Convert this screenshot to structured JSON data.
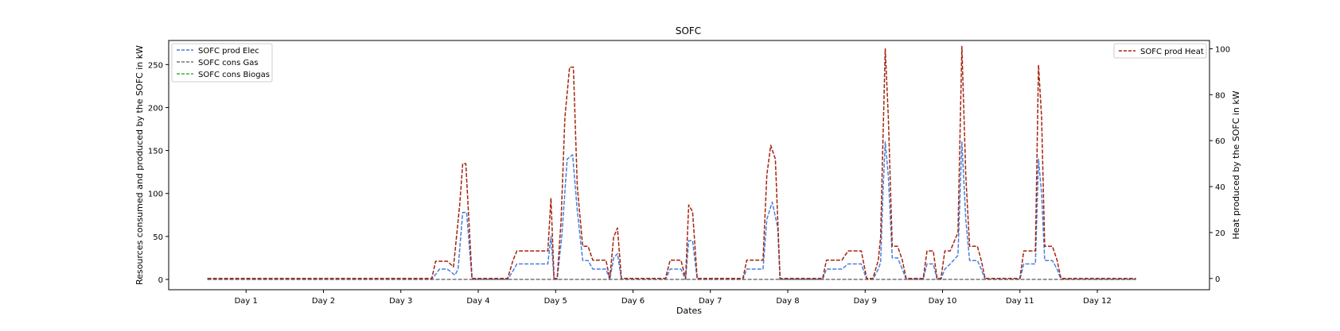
{
  "chart_data": {
    "type": "line",
    "title": "SOFC",
    "xlabel": "Dates",
    "ylabel_left": "Resources consumed and produced by the SOFC in kW",
    "ylabel_right": "Heat produced by the SOFC in kW",
    "x_tick_labels": [
      "Day 1",
      "Day 2",
      "Day 3",
      "Day 4",
      "Day 5",
      "Day 6",
      "Day 7",
      "Day 8",
      "Day 9",
      "Day 10",
      "Day 11",
      "Day 12"
    ],
    "y_left_ticks": [
      0,
      50,
      100,
      150,
      200,
      250
    ],
    "y_right_ticks": [
      0,
      20,
      40,
      60,
      80,
      100
    ],
    "ylim_left": [
      -12,
      278
    ],
    "ylim_right": [
      -4.9,
      103.6
    ],
    "xlim": [
      0.5,
      13.95
    ],
    "grid": false,
    "legend_left": "top-left",
    "legend_right": "top-right",
    "series": [
      {
        "name": "SOFC prod Elec",
        "axis": "left",
        "color": "#4a7fdb",
        "points": [
          [
            1.0,
            0
          ],
          [
            3.9,
            0
          ],
          [
            4.0,
            12
          ],
          [
            4.1,
            12
          ],
          [
            4.2,
            5
          ],
          [
            4.24,
            12
          ],
          [
            4.3,
            78
          ],
          [
            4.35,
            78
          ],
          [
            4.42,
            0
          ],
          [
            4.88,
            0
          ],
          [
            4.95,
            10
          ],
          [
            5.0,
            18
          ],
          [
            5.4,
            18
          ],
          [
            5.44,
            50
          ],
          [
            5.48,
            0
          ],
          [
            5.52,
            0
          ],
          [
            5.58,
            50
          ],
          [
            5.65,
            140
          ],
          [
            5.72,
            145
          ],
          [
            5.78,
            80
          ],
          [
            5.85,
            22
          ],
          [
            5.92,
            22
          ],
          [
            5.98,
            12
          ],
          [
            6.15,
            12
          ],
          [
            6.2,
            0
          ],
          [
            6.25,
            25
          ],
          [
            6.3,
            30
          ],
          [
            6.35,
            0
          ],
          [
            6.92,
            0
          ],
          [
            6.98,
            12
          ],
          [
            7.12,
            12
          ],
          [
            7.18,
            0
          ],
          [
            7.22,
            45
          ],
          [
            7.27,
            45
          ],
          [
            7.33,
            0
          ],
          [
            7.92,
            0
          ],
          [
            7.97,
            12
          ],
          [
            8.18,
            12
          ],
          [
            8.23,
            70
          ],
          [
            8.3,
            90
          ],
          [
            8.37,
            60
          ],
          [
            8.4,
            0
          ],
          [
            8.95,
            0
          ],
          [
            9.0,
            12
          ],
          [
            9.2,
            12
          ],
          [
            9.28,
            18
          ],
          [
            9.45,
            18
          ],
          [
            9.52,
            0
          ],
          [
            9.6,
            0
          ],
          [
            9.67,
            12
          ],
          [
            9.7,
            20
          ],
          [
            9.73,
            100
          ],
          [
            9.76,
            160
          ],
          [
            9.8,
            120
          ],
          [
            9.85,
            25
          ],
          [
            9.92,
            25
          ],
          [
            9.98,
            12
          ],
          [
            10.03,
            0
          ],
          [
            10.25,
            0
          ],
          [
            10.3,
            18
          ],
          [
            10.38,
            18
          ],
          [
            10.43,
            0
          ],
          [
            10.48,
            0
          ],
          [
            10.53,
            12
          ],
          [
            10.6,
            18
          ],
          [
            10.7,
            28
          ],
          [
            10.75,
            160
          ],
          [
            10.8,
            70
          ],
          [
            10.85,
            22
          ],
          [
            10.95,
            22
          ],
          [
            11.0,
            12
          ],
          [
            11.05,
            0
          ],
          [
            11.5,
            0
          ],
          [
            11.55,
            18
          ],
          [
            11.7,
            18
          ],
          [
            11.74,
            140
          ],
          [
            11.78,
            100
          ],
          [
            11.82,
            22
          ],
          [
            11.92,
            22
          ],
          [
            11.98,
            12
          ],
          [
            12.03,
            0
          ],
          [
            13.0,
            0
          ]
        ]
      },
      {
        "name": "SOFC cons Gas",
        "axis": "left",
        "color": "#777777",
        "points": [
          [
            1.0,
            0
          ],
          [
            13.0,
            0
          ]
        ]
      },
      {
        "name": "SOFC cons Biogas",
        "axis": "left",
        "color": "#3cb43c",
        "points": []
      },
      {
        "name": "SOFC prod Heat",
        "axis": "right",
        "color": "#a3240e",
        "points": [
          [
            1.0,
            0
          ],
          [
            3.9,
            0
          ],
          [
            3.95,
            7.5
          ],
          [
            4.1,
            7.5
          ],
          [
            4.18,
            5
          ],
          [
            4.26,
            32
          ],
          [
            4.3,
            50
          ],
          [
            4.34,
            50
          ],
          [
            4.42,
            0
          ],
          [
            4.88,
            0
          ],
          [
            4.95,
            8
          ],
          [
            5.0,
            12
          ],
          [
            5.4,
            12
          ],
          [
            5.44,
            35
          ],
          [
            5.48,
            0
          ],
          [
            5.52,
            0
          ],
          [
            5.57,
            25
          ],
          [
            5.62,
            70
          ],
          [
            5.68,
            92
          ],
          [
            5.73,
            92
          ],
          [
            5.78,
            40
          ],
          [
            5.85,
            14
          ],
          [
            5.92,
            14
          ],
          [
            5.98,
            8
          ],
          [
            6.15,
            8
          ],
          [
            6.2,
            0
          ],
          [
            6.25,
            18
          ],
          [
            6.3,
            22
          ],
          [
            6.35,
            0
          ],
          [
            6.92,
            0
          ],
          [
            6.98,
            8
          ],
          [
            7.12,
            8
          ],
          [
            7.18,
            0
          ],
          [
            7.22,
            32
          ],
          [
            7.27,
            29
          ],
          [
            7.33,
            0
          ],
          [
            7.92,
            0
          ],
          [
            7.97,
            8
          ],
          [
            8.18,
            8
          ],
          [
            8.23,
            45
          ],
          [
            8.28,
            58
          ],
          [
            8.34,
            52
          ],
          [
            8.4,
            0
          ],
          [
            8.95,
            0
          ],
          [
            9.0,
            8
          ],
          [
            9.2,
            8
          ],
          [
            9.28,
            12
          ],
          [
            9.45,
            12
          ],
          [
            9.52,
            0
          ],
          [
            9.6,
            0
          ],
          [
            9.67,
            8
          ],
          [
            9.7,
            18
          ],
          [
            9.73,
            60
          ],
          [
            9.76,
            100
          ],
          [
            9.8,
            70
          ],
          [
            9.85,
            14
          ],
          [
            9.92,
            14
          ],
          [
            9.98,
            8
          ],
          [
            10.03,
            0
          ],
          [
            10.25,
            0
          ],
          [
            10.3,
            12
          ],
          [
            10.38,
            12
          ],
          [
            10.43,
            0
          ],
          [
            10.48,
            0
          ],
          [
            10.53,
            12
          ],
          [
            10.6,
            12
          ],
          [
            10.7,
            20
          ],
          [
            10.75,
            101
          ],
          [
            10.8,
            45
          ],
          [
            10.85,
            14
          ],
          [
            10.95,
            14
          ],
          [
            11.0,
            8
          ],
          [
            11.05,
            0
          ],
          [
            11.5,
            0
          ],
          [
            11.55,
            12
          ],
          [
            11.7,
            12
          ],
          [
            11.74,
            93
          ],
          [
            11.78,
            70
          ],
          [
            11.82,
            14
          ],
          [
            11.92,
            14
          ],
          [
            11.98,
            8
          ],
          [
            12.03,
            0
          ],
          [
            13.0,
            0
          ]
        ]
      }
    ]
  }
}
